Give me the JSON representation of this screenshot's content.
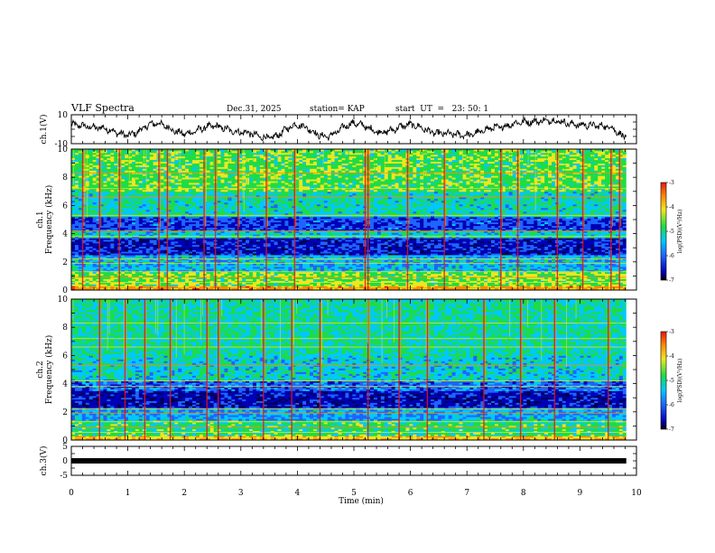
{
  "header": {
    "title": "VLF Spectra",
    "date": "Dec.31, 2025",
    "station": "station= KAP",
    "start": "start  UT  =   23: 50: 1"
  },
  "colorbar_label": "log(PSD)(V²/Hz)",
  "colors": {
    "blue_dark": "#0000b4",
    "blue": "#1e64ff",
    "cyan": "#00c8ff",
    "green": "#1edc46",
    "yellow": "#f0e61e",
    "orange": "#ff8c00",
    "red": "#e61414"
  },
  "chart_data": [
    {
      "type": "line",
      "name": "ch1-waveform",
      "ylabel": "ch.1(V)",
      "ylim": [
        -10,
        10
      ],
      "xlim": [
        0,
        10
      ],
      "y_ticks": [
        "10",
        "-10"
      ],
      "x_end_min": 9.82,
      "description_points_x": [
        0,
        0.5,
        1,
        1.5,
        2,
        2.5,
        3,
        3.5,
        4,
        4.5,
        5,
        5.5,
        6,
        6.5,
        7,
        7.5,
        8,
        8.5,
        9,
        9.5,
        9.8
      ],
      "values": [
        3,
        1,
        -4,
        4,
        -3,
        2,
        -2,
        -6,
        3,
        -5,
        4,
        -2,
        3,
        -3,
        -4,
        1,
        5,
        6,
        3,
        2,
        -5
      ]
    },
    {
      "type": "heatmap",
      "name": "ch1-spectrogram",
      "ylabel": "ch.1\nFrequency (kHz)",
      "ylim": [
        0,
        10
      ],
      "xlim": [
        0,
        10
      ],
      "y_ticks": [
        "0",
        "2",
        "4",
        "6",
        "8",
        "10"
      ],
      "colorbar": {
        "range": [
          -7,
          -3
        ],
        "ticks": [
          "-3",
          "-4",
          "-5",
          "-6",
          "-7"
        ],
        "label": "log(PSD)(V²/Hz)"
      },
      "bands_khz": [
        {
          "from": 0.0,
          "to": 0.3,
          "level": -3.5
        },
        {
          "from": 0.3,
          "to": 1.3,
          "level": -4.3
        },
        {
          "from": 1.3,
          "to": 2.5,
          "level": -5.2
        },
        {
          "from": 2.5,
          "to": 3.7,
          "level": -6.2
        },
        {
          "from": 3.7,
          "to": 4.2,
          "level": -5.0
        },
        {
          "from": 4.2,
          "to": 5.2,
          "level": -5.9
        },
        {
          "from": 5.2,
          "to": 7.0,
          "level": -4.9
        },
        {
          "from": 7.0,
          "to": 10.0,
          "level": -4.4
        }
      ],
      "spike_times_min": [
        0.2,
        0.5,
        0.85,
        1.55,
        1.7,
        2.35,
        2.55,
        2.95,
        3.45,
        3.95,
        5.2,
        5.25,
        5.95,
        6.6,
        7.6,
        7.9,
        8.6,
        9.05,
        9.55,
        9.7
      ]
    },
    {
      "type": "heatmap",
      "name": "ch2-spectrogram",
      "ylabel": "ch.2\nFrequency (kHz)",
      "ylim": [
        0,
        10
      ],
      "xlim": [
        0,
        10
      ],
      "y_ticks": [
        "0",
        "2",
        "4",
        "6",
        "8",
        "10"
      ],
      "colorbar": {
        "range": [
          -7,
          -3
        ],
        "ticks": [
          "-3",
          "-4",
          "-5",
          "-6",
          "-7"
        ],
        "label": "log(PSD)(V²/Hz)"
      },
      "bands_khz": [
        {
          "from": 0.0,
          "to": 0.3,
          "level": -3.6
        },
        {
          "from": 0.3,
          "to": 1.4,
          "level": -4.6
        },
        {
          "from": 1.4,
          "to": 2.3,
          "level": -5.3
        },
        {
          "from": 2.3,
          "to": 3.5,
          "level": -6.3
        },
        {
          "from": 3.5,
          "to": 4.2,
          "level": -5.7
        },
        {
          "from": 4.2,
          "to": 6.0,
          "level": -5.0
        },
        {
          "from": 6.0,
          "to": 10.0,
          "level": -4.8
        }
      ],
      "spike_times_min": [
        0.5,
        0.95,
        1.3,
        1.75,
        2.4,
        2.6,
        3.4,
        3.9,
        4.4,
        5.25,
        5.8,
        6.3,
        7.3,
        7.95,
        8.55,
        9.5
      ]
    },
    {
      "type": "line",
      "name": "ch3-waveform",
      "ylabel": "ch.3(V)",
      "ylim": [
        -5,
        5
      ],
      "xlim": [
        0,
        10
      ],
      "y_ticks": [
        "5",
        "0",
        "-5"
      ],
      "x_end_min": 9.82,
      "values": [
        0.3,
        -0.3
      ]
    }
  ],
  "x_axis": {
    "label": "Time (min)",
    "ticks": [
      "0",
      "1",
      "2",
      "3",
      "4",
      "5",
      "6",
      "7",
      "8",
      "9",
      "10"
    ]
  }
}
